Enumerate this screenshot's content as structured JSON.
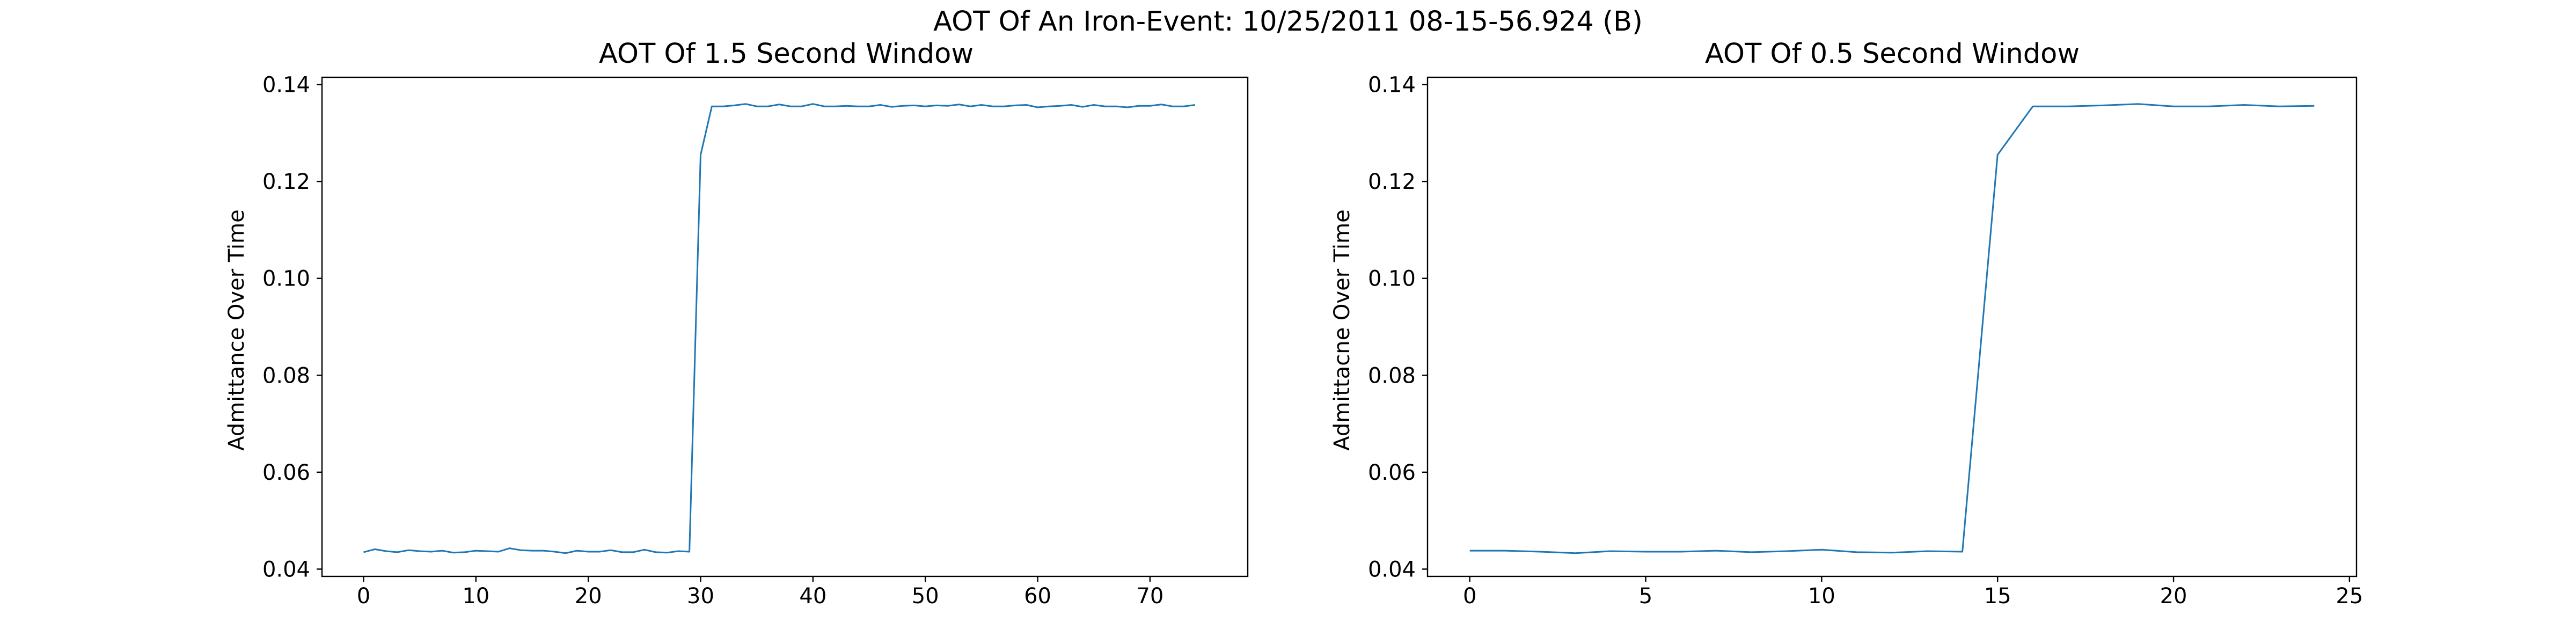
{
  "figure": {
    "suptitle": "AOT Of An Iron-Event: 10/25/2011 08-15-56.924 (B)"
  },
  "chart_data": [
    {
      "type": "line",
      "title": "AOT Of 1.5 Second Window",
      "xlabel": "",
      "ylabel": "Admittance Over Time",
      "xlim": [
        -3.7,
        78.7
      ],
      "ylim": [
        0.0385,
        0.1415
      ],
      "xticks": [
        0,
        10,
        20,
        30,
        40,
        50,
        60,
        70
      ],
      "yticks": [
        0.04,
        0.06,
        0.08,
        0.1,
        0.12,
        0.14
      ],
      "ytick_labels": [
        "0.04",
        "0.06",
        "0.08",
        "0.10",
        "0.12",
        "0.14"
      ],
      "line_color": "#1f77b4",
      "grid": false,
      "x": [
        0,
        1,
        2,
        3,
        4,
        5,
        6,
        7,
        8,
        9,
        10,
        11,
        12,
        13,
        14,
        15,
        16,
        17,
        18,
        19,
        20,
        21,
        22,
        23,
        24,
        25,
        26,
        27,
        28,
        29,
        30,
        31,
        32,
        33,
        34,
        35,
        36,
        37,
        38,
        39,
        40,
        41,
        42,
        43,
        44,
        45,
        46,
        47,
        48,
        49,
        50,
        51,
        52,
        53,
        54,
        55,
        56,
        57,
        58,
        59,
        60,
        61,
        62,
        63,
        64,
        65,
        66,
        67,
        68,
        69,
        70,
        71,
        72,
        73,
        74
      ],
      "values": [
        0.0435,
        0.0441,
        0.0437,
        0.0435,
        0.0439,
        0.0437,
        0.0436,
        0.0438,
        0.0434,
        0.0435,
        0.0438,
        0.0437,
        0.0436,
        0.0443,
        0.0439,
        0.0438,
        0.0438,
        0.0436,
        0.0433,
        0.0438,
        0.0436,
        0.0436,
        0.0439,
        0.0435,
        0.0435,
        0.044,
        0.0435,
        0.0434,
        0.0437,
        0.0436,
        0.1255,
        0.1355,
        0.1355,
        0.1357,
        0.136,
        0.1355,
        0.1355,
        0.1359,
        0.1355,
        0.1355,
        0.136,
        0.1355,
        0.1355,
        0.1356,
        0.1355,
        0.1355,
        0.1358,
        0.1354,
        0.1356,
        0.1357,
        0.1355,
        0.1357,
        0.1356,
        0.1359,
        0.1355,
        0.1358,
        0.1355,
        0.1355,
        0.1357,
        0.1358,
        0.1353,
        0.1355,
        0.1356,
        0.1358,
        0.1354,
        0.1358,
        0.1355,
        0.1355,
        0.1353,
        0.1356,
        0.1356,
        0.1359,
        0.1355,
        0.1355,
        0.1358
      ]
    },
    {
      "type": "line",
      "title": "AOT Of 0.5 Second Window",
      "xlabel": "",
      "ylabel": "Admittacne Over Time",
      "xlim": [
        -1.2,
        25.2
      ],
      "ylim": [
        0.0385,
        0.1415
      ],
      "xticks": [
        0,
        5,
        10,
        15,
        20,
        25
      ],
      "yticks": [
        0.04,
        0.06,
        0.08,
        0.1,
        0.12,
        0.14
      ],
      "ytick_labels": [
        "0.04",
        "0.06",
        "0.08",
        "0.10",
        "0.12",
        "0.14"
      ],
      "line_color": "#1f77b4",
      "grid": false,
      "x": [
        0,
        1,
        2,
        3,
        4,
        5,
        6,
        7,
        8,
        9,
        10,
        11,
        12,
        13,
        14,
        15,
        16,
        17,
        18,
        19,
        20,
        21,
        22,
        23,
        24
      ],
      "values": [
        0.0438,
        0.0438,
        0.0436,
        0.0433,
        0.0437,
        0.0436,
        0.0436,
        0.0438,
        0.0435,
        0.0437,
        0.044,
        0.0435,
        0.0434,
        0.0437,
        0.0436,
        0.1255,
        0.1355,
        0.1355,
        0.1357,
        0.136,
        0.1355,
        0.1355,
        0.1358,
        0.1355,
        0.1356
      ]
    }
  ]
}
